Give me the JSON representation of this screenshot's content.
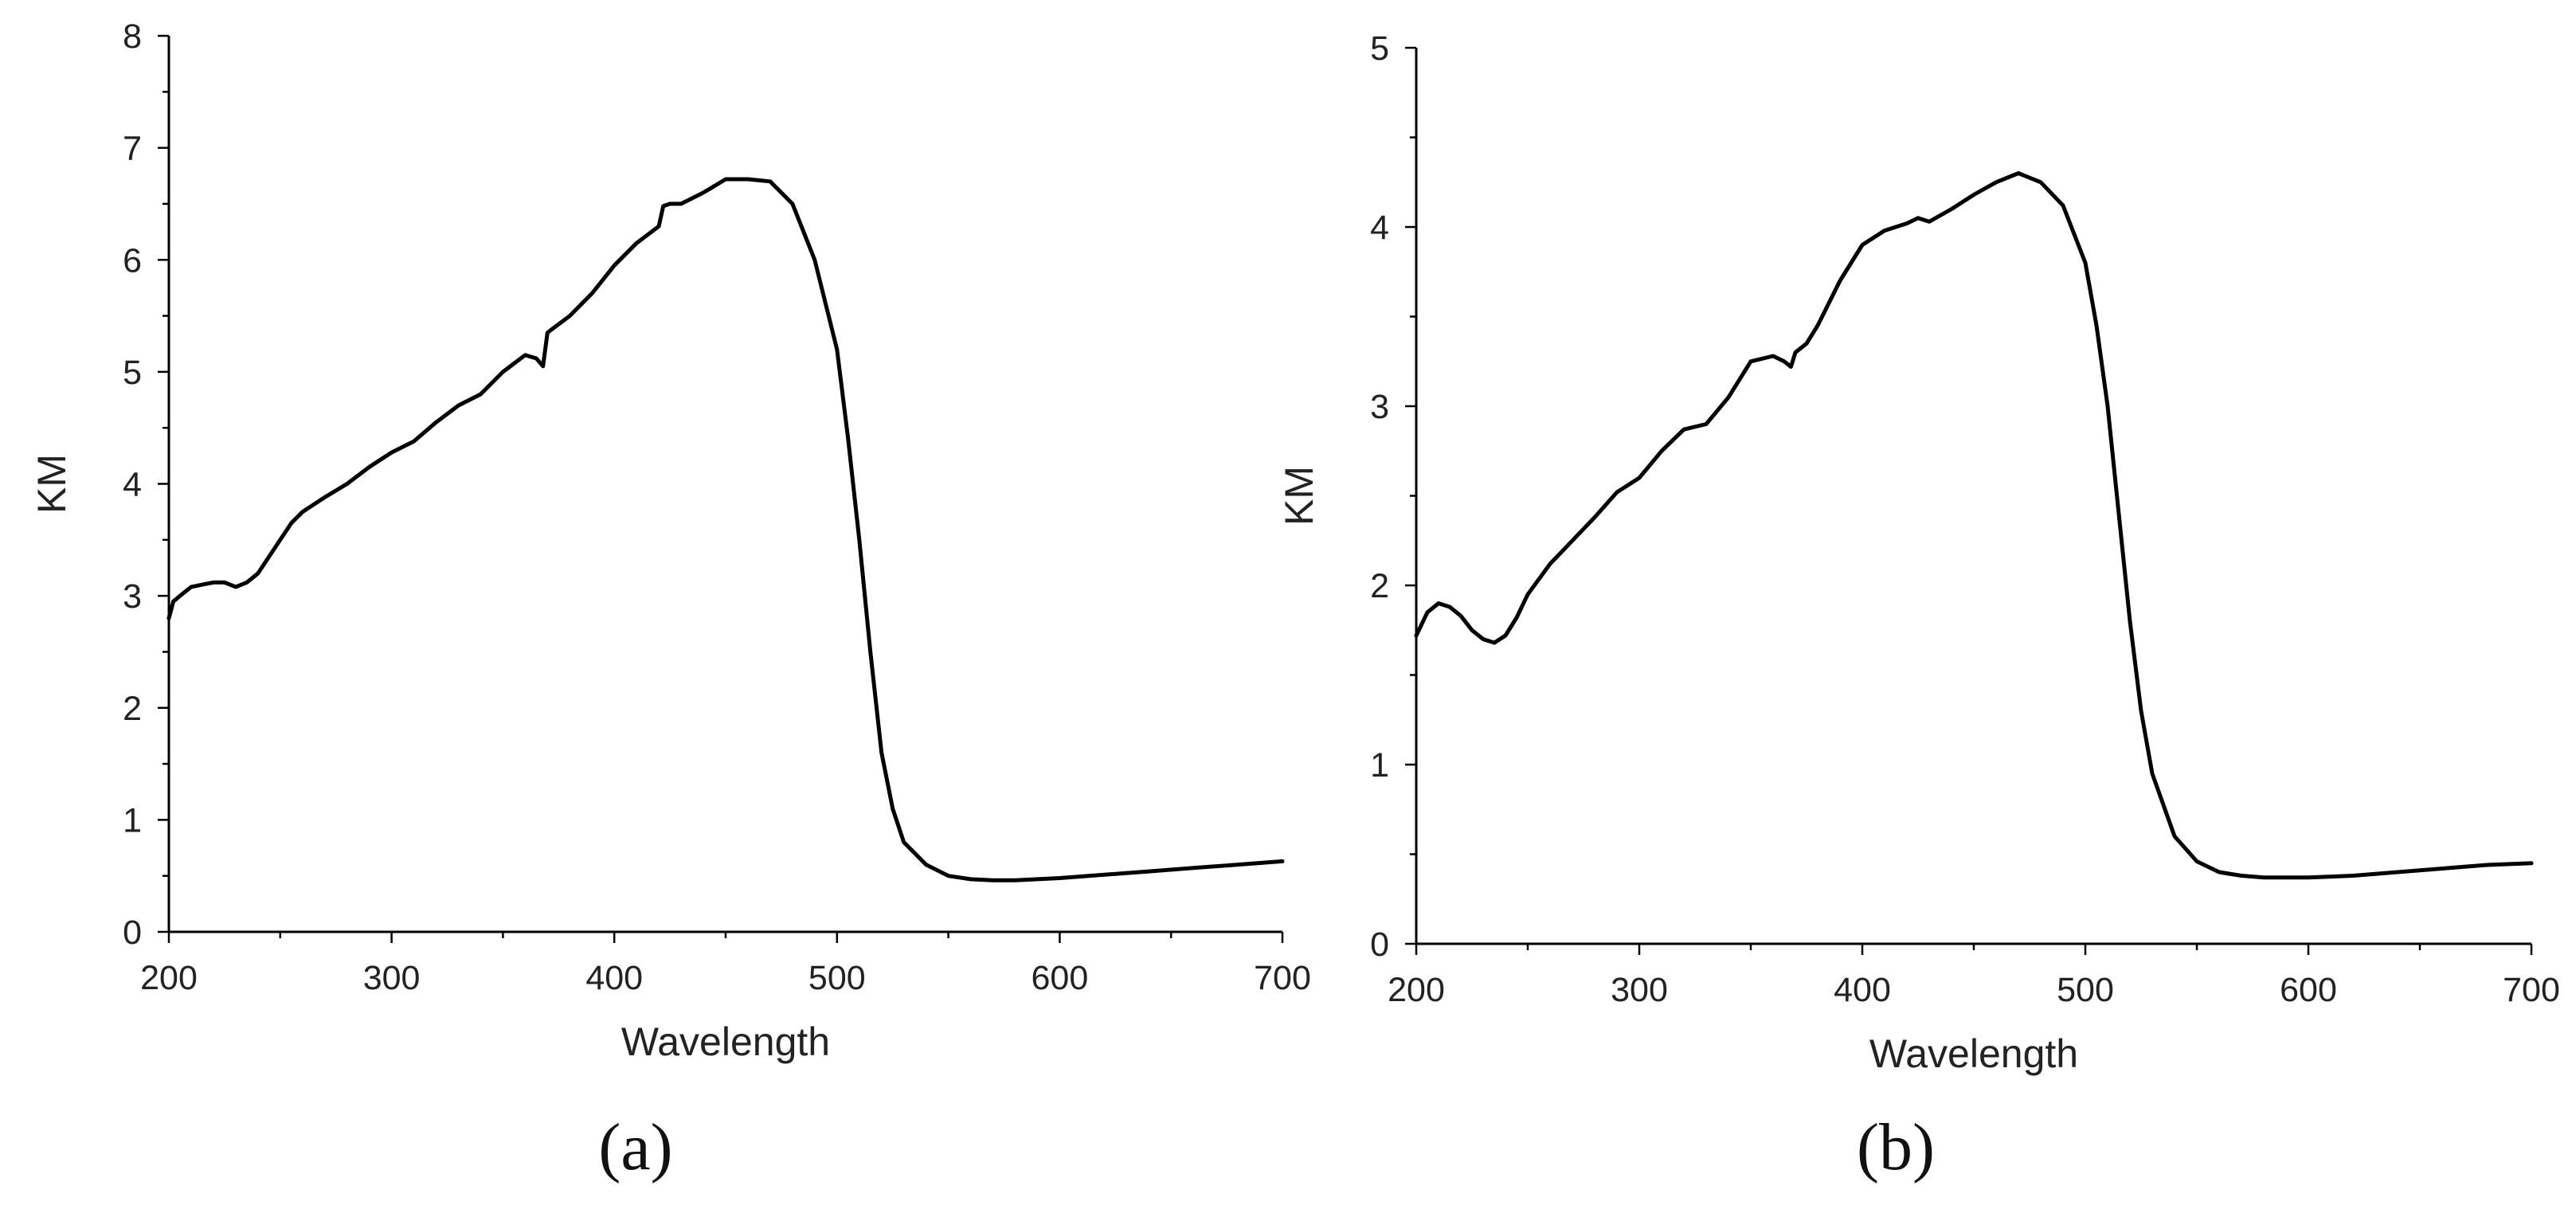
{
  "chart_data": [
    {
      "type": "line",
      "panel_label": "(a)",
      "xlabel": "Wavelength",
      "ylabel": "KM",
      "xlim": [
        200,
        700
      ],
      "ylim": [
        0,
        8
      ],
      "x_ticks": [
        200,
        300,
        400,
        500,
        600,
        700
      ],
      "y_ticks": [
        0,
        1,
        2,
        3,
        4,
        5,
        6,
        7,
        8
      ],
      "x_minor_step": 50,
      "y_minor_step": 0.5,
      "series": [
        {
          "name": "KM",
          "x": [
            200,
            202,
            205,
            210,
            215,
            220,
            225,
            230,
            235,
            240,
            245,
            250,
            255,
            260,
            270,
            280,
            290,
            300,
            310,
            320,
            330,
            340,
            350,
            360,
            365,
            368,
            370,
            372,
            380,
            390,
            400,
            410,
            420,
            422,
            425,
            430,
            440,
            450,
            460,
            470,
            480,
            490,
            500,
            505,
            510,
            515,
            520,
            525,
            530,
            540,
            550,
            560,
            570,
            580,
            590,
            600,
            620,
            640,
            660,
            680,
            700
          ],
          "y": [
            2.8,
            2.95,
            3.0,
            3.08,
            3.1,
            3.12,
            3.12,
            3.08,
            3.12,
            3.2,
            3.35,
            3.5,
            3.65,
            3.75,
            3.88,
            4.0,
            4.15,
            4.28,
            4.38,
            4.55,
            4.7,
            4.8,
            5.0,
            5.15,
            5.12,
            5.05,
            5.35,
            5.38,
            5.5,
            5.7,
            5.95,
            6.15,
            6.3,
            6.48,
            6.5,
            6.5,
            6.6,
            6.72,
            6.72,
            6.7,
            6.5,
            6.0,
            5.2,
            4.4,
            3.5,
            2.5,
            1.6,
            1.1,
            0.8,
            0.6,
            0.5,
            0.47,
            0.46,
            0.46,
            0.47,
            0.48,
            0.51,
            0.54,
            0.57,
            0.6,
            0.63
          ]
        }
      ]
    },
    {
      "type": "line",
      "panel_label": "(b)",
      "xlabel": "Wavelength",
      "ylabel": "KM",
      "xlim": [
        200,
        700
      ],
      "ylim": [
        0,
        5
      ],
      "x_ticks": [
        200,
        300,
        400,
        500,
        600,
        700
      ],
      "y_ticks": [
        0,
        1,
        2,
        3,
        4,
        5
      ],
      "x_minor_step": 50,
      "y_minor_step": 0.5,
      "series": [
        {
          "name": "KM",
          "x": [
            200,
            205,
            210,
            215,
            220,
            225,
            230,
            235,
            240,
            245,
            250,
            260,
            270,
            280,
            290,
            300,
            310,
            320,
            330,
            340,
            350,
            360,
            365,
            368,
            370,
            375,
            380,
            390,
            400,
            410,
            420,
            425,
            430,
            440,
            450,
            460,
            470,
            480,
            490,
            500,
            505,
            510,
            515,
            520,
            525,
            530,
            540,
            550,
            560,
            570,
            580,
            590,
            600,
            620,
            640,
            660,
            680,
            700
          ],
          "y": [
            1.72,
            1.85,
            1.9,
            1.88,
            1.83,
            1.75,
            1.7,
            1.68,
            1.72,
            1.82,
            1.95,
            2.12,
            2.25,
            2.38,
            2.52,
            2.6,
            2.75,
            2.87,
            2.9,
            3.05,
            3.25,
            3.28,
            3.25,
            3.22,
            3.3,
            3.35,
            3.45,
            3.7,
            3.9,
            3.98,
            4.02,
            4.05,
            4.03,
            4.1,
            4.18,
            4.25,
            4.3,
            4.25,
            4.12,
            3.8,
            3.45,
            3.0,
            2.4,
            1.8,
            1.3,
            0.95,
            0.6,
            0.46,
            0.4,
            0.38,
            0.37,
            0.37,
            0.37,
            0.38,
            0.4,
            0.42,
            0.44,
            0.45
          ]
        }
      ]
    }
  ]
}
